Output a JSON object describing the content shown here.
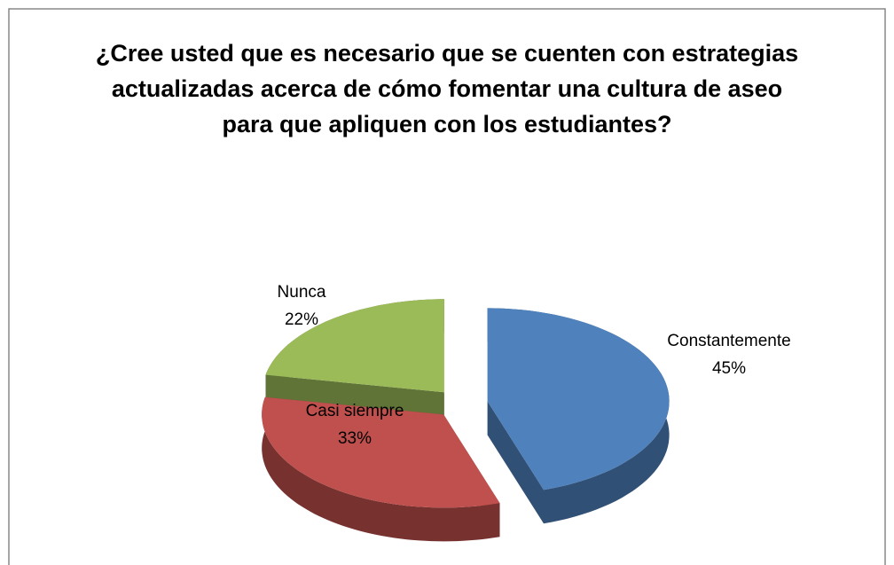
{
  "chart_data": {
    "type": "pie3d",
    "title": "¿Cree usted que es necesario que se cuenten con estrategias actualizadas acerca de cómo fomentar una cultura de aseo para que apliquen con los estudiantes?",
    "categories": [
      "Constantemente",
      "Casi siempre",
      "Nunca"
    ],
    "values": [
      45,
      33,
      22
    ],
    "value_labels": [
      "45%",
      "33%",
      "22%"
    ],
    "colors": [
      "#4f81bd",
      "#c0504d",
      "#9bbb59"
    ]
  }
}
